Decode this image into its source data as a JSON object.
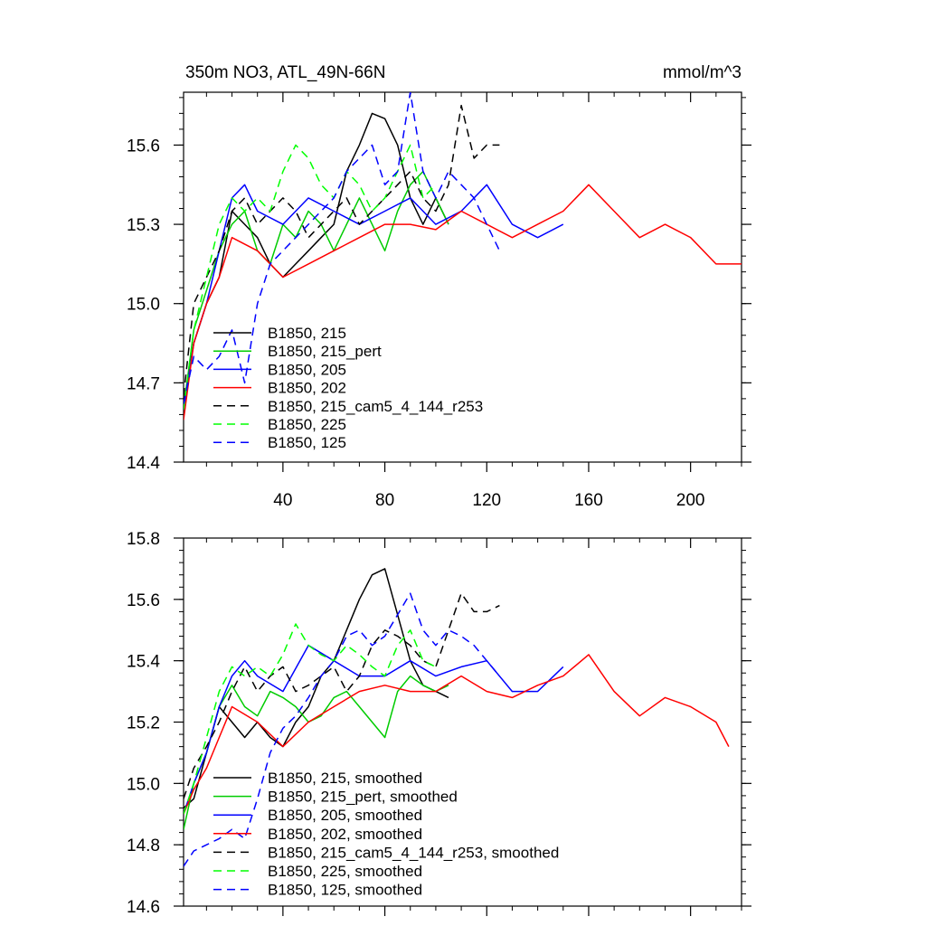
{
  "chart_data": [
    {
      "type": "line",
      "title": "350m NO3, ATL_49N-66N",
      "units": "mmol/m^3",
      "xlabel": "",
      "ylabel": "",
      "xlim": [
        1,
        220
      ],
      "ylim": [
        14.4,
        15.8
      ],
      "x_ticks": [
        40,
        80,
        120,
        160,
        200
      ],
      "x_tick_labels": [
        "40",
        "80",
        "120",
        "160",
        "200"
      ],
      "y_ticks": [
        14.4,
        14.7,
        15.0,
        15.3,
        15.6
      ],
      "y_tick_labels": [
        "14.4",
        "14.7",
        "15.0",
        "15.3",
        "15.6"
      ],
      "legend_position": "bottom-left",
      "series": [
        {
          "name": "B1850, 215",
          "color": "#000000",
          "dash": "solid",
          "x": [
            1,
            5,
            10,
            15,
            20,
            25,
            30,
            35,
            40,
            45,
            50,
            55,
            60,
            65,
            70,
            75,
            80,
            85,
            90,
            95,
            100,
            105
          ],
          "values": [
            14.62,
            14.85,
            15.0,
            15.1,
            15.35,
            15.3,
            15.25,
            15.15,
            15.1,
            15.15,
            15.2,
            15.25,
            15.3,
            15.5,
            15.6,
            15.72,
            15.7,
            15.6,
            15.4,
            15.3,
            15.4,
            15.3
          ]
        },
        {
          "name": "B1850, 215_pert",
          "color": "#00cc00",
          "dash": "solid",
          "x": [
            1,
            5,
            10,
            15,
            20,
            25,
            30,
            35,
            40,
            45,
            50,
            55,
            60,
            65,
            70,
            75,
            80,
            85,
            90,
            95,
            100,
            105
          ],
          "values": [
            14.6,
            14.9,
            15.05,
            15.2,
            15.3,
            15.35,
            15.2,
            15.15,
            15.3,
            15.25,
            15.35,
            15.3,
            15.2,
            15.3,
            15.4,
            15.3,
            15.2,
            15.35,
            15.45,
            15.5,
            15.4,
            15.3
          ]
        },
        {
          "name": "B1850, 205",
          "color": "#0000ff",
          "dash": "solid",
          "x": [
            1,
            5,
            10,
            15,
            20,
            25,
            30,
            40,
            50,
            60,
            70,
            80,
            90,
            100,
            110,
            120,
            130,
            140,
            150
          ],
          "values": [
            14.6,
            14.85,
            15.0,
            15.2,
            15.4,
            15.45,
            15.35,
            15.3,
            15.4,
            15.35,
            15.3,
            15.35,
            15.4,
            15.3,
            15.35,
            15.45,
            15.3,
            15.25,
            15.3
          ]
        },
        {
          "name": "B1850, 202",
          "color": "#ff0000",
          "dash": "solid",
          "x": [
            1,
            5,
            10,
            15,
            20,
            30,
            40,
            50,
            60,
            70,
            80,
            90,
            100,
            110,
            120,
            130,
            140,
            150,
            160,
            170,
            180,
            190,
            200,
            210,
            220
          ],
          "values": [
            14.56,
            14.85,
            15.0,
            15.1,
            15.25,
            15.2,
            15.1,
            15.15,
            15.2,
            15.25,
            15.3,
            15.3,
            15.28,
            15.35,
            15.3,
            15.25,
            15.3,
            15.35,
            15.45,
            15.35,
            15.25,
            15.3,
            15.25,
            15.15,
            15.15
          ]
        },
        {
          "name": "B1850, 215_cam5_4_144_r253",
          "color": "#000000",
          "dash": "dashed",
          "x": [
            1,
            5,
            10,
            15,
            20,
            25,
            30,
            35,
            40,
            45,
            50,
            55,
            60,
            65,
            70,
            75,
            80,
            85,
            90,
            95,
            100,
            105,
            110,
            115,
            120,
            125
          ],
          "values": [
            14.65,
            15.0,
            15.1,
            15.2,
            15.35,
            15.4,
            15.3,
            15.35,
            15.4,
            15.35,
            15.25,
            15.3,
            15.35,
            15.4,
            15.3,
            15.35,
            15.4,
            15.45,
            15.5,
            15.4,
            15.35,
            15.45,
            15.75,
            15.55,
            15.6,
            15.6
          ]
        },
        {
          "name": "B1850, 225",
          "color": "#00ff00",
          "dash": "dashed",
          "x": [
            1,
            5,
            10,
            15,
            20,
            25,
            30,
            35,
            40,
            45,
            50,
            55,
            60,
            65,
            70,
            75,
            80,
            85,
            90,
            95,
            100
          ],
          "values": [
            14.6,
            14.9,
            15.1,
            15.3,
            15.4,
            15.35,
            15.4,
            15.35,
            15.5,
            15.6,
            15.55,
            15.45,
            15.4,
            15.5,
            15.45,
            15.35,
            15.4,
            15.5,
            15.6,
            15.4,
            15.45
          ]
        },
        {
          "name": "B1850, 125",
          "color": "#0000ff",
          "dash": "dashed",
          "x": [
            1,
            5,
            10,
            15,
            20,
            25,
            30,
            35,
            40,
            45,
            50,
            55,
            60,
            65,
            70,
            75,
            80,
            85,
            90,
            95,
            100,
            105,
            110,
            115,
            120,
            125
          ],
          "values": [
            14.62,
            14.8,
            14.75,
            14.8,
            14.9,
            14.7,
            15.0,
            15.15,
            15.2,
            15.25,
            15.3,
            15.35,
            15.4,
            15.5,
            15.55,
            15.6,
            15.45,
            15.5,
            15.8,
            15.5,
            15.4,
            15.5,
            15.45,
            15.4,
            15.3,
            15.2
          ]
        }
      ]
    },
    {
      "type": "line",
      "title": "",
      "xlabel": "",
      "ylabel": "",
      "xlim": [
        1,
        220
      ],
      "ylim": [
        14.6,
        15.8
      ],
      "x_ticks": [
        40,
        80,
        120,
        160,
        200
      ],
      "y_ticks": [
        14.6,
        14.8,
        15.0,
        15.2,
        15.4,
        15.6,
        15.8
      ],
      "y_tick_labels": [
        "14.6",
        "14.8",
        "15.0",
        "15.2",
        "15.4",
        "15.6",
        "15.8"
      ],
      "legend_position": "bottom-left",
      "series": [
        {
          "name": "B1850, 215, smoothed",
          "color": "#000000",
          "dash": "solid",
          "x": [
            1,
            5,
            10,
            15,
            20,
            25,
            30,
            35,
            40,
            45,
            50,
            55,
            60,
            65,
            70,
            75,
            80,
            85,
            90,
            95,
            100,
            105
          ],
          "values": [
            14.92,
            14.95,
            15.1,
            15.25,
            15.2,
            15.15,
            15.2,
            15.15,
            15.12,
            15.2,
            15.25,
            15.35,
            15.4,
            15.5,
            15.6,
            15.68,
            15.7,
            15.55,
            15.4,
            15.32,
            15.3,
            15.28
          ]
        },
        {
          "name": "B1850, 215_pert, smoothed",
          "color": "#00cc00",
          "dash": "solid",
          "x": [
            1,
            5,
            10,
            15,
            20,
            25,
            30,
            35,
            40,
            45,
            50,
            55,
            60,
            65,
            70,
            75,
            80,
            85,
            90,
            95,
            100,
            105
          ],
          "values": [
            14.85,
            15.0,
            15.1,
            15.25,
            15.32,
            15.25,
            15.22,
            15.3,
            15.28,
            15.25,
            15.2,
            15.22,
            15.28,
            15.3,
            15.25,
            15.2,
            15.15,
            15.3,
            15.35,
            15.32,
            15.3,
            15.32
          ]
        },
        {
          "name": "B1850, 205, smoothed",
          "color": "#0000ff",
          "dash": "solid",
          "x": [
            1,
            5,
            10,
            15,
            20,
            25,
            30,
            40,
            50,
            60,
            70,
            80,
            90,
            100,
            110,
            120,
            130,
            140,
            150
          ],
          "values": [
            14.9,
            15.0,
            15.1,
            15.25,
            15.35,
            15.4,
            15.35,
            15.3,
            15.45,
            15.4,
            15.35,
            15.35,
            15.4,
            15.35,
            15.38,
            15.4,
            15.3,
            15.3,
            15.38
          ]
        },
        {
          "name": "B1850, 202, smoothed",
          "color": "#ff0000",
          "dash": "solid",
          "x": [
            1,
            5,
            10,
            15,
            20,
            30,
            40,
            50,
            60,
            70,
            80,
            90,
            100,
            110,
            120,
            130,
            140,
            150,
            160,
            170,
            180,
            190,
            200,
            210,
            215
          ],
          "values": [
            14.9,
            14.98,
            15.05,
            15.15,
            15.25,
            15.2,
            15.12,
            15.2,
            15.25,
            15.3,
            15.32,
            15.3,
            15.3,
            15.35,
            15.3,
            15.28,
            15.32,
            15.35,
            15.42,
            15.3,
            15.22,
            15.28,
            15.25,
            15.2,
            15.12
          ]
        },
        {
          "name": "B1850, 215_cam5_4_144_r253, smoothed",
          "color": "#000000",
          "dash": "dashed",
          "x": [
            1,
            5,
            10,
            15,
            20,
            25,
            30,
            35,
            40,
            45,
            50,
            55,
            60,
            65,
            70,
            75,
            80,
            85,
            90,
            95,
            100,
            105,
            110,
            115,
            120,
            125
          ],
          "values": [
            14.95,
            15.05,
            15.12,
            15.2,
            15.3,
            15.38,
            15.3,
            15.35,
            15.38,
            15.3,
            15.32,
            15.35,
            15.38,
            15.3,
            15.35,
            15.45,
            15.5,
            15.48,
            15.45,
            15.4,
            15.38,
            15.5,
            15.62,
            15.56,
            15.56,
            15.58
          ]
        },
        {
          "name": "B1850, 225, smoothed",
          "color": "#00ff00",
          "dash": "dashed",
          "x": [
            1,
            5,
            10,
            15,
            20,
            25,
            30,
            35,
            40,
            45,
            50,
            55,
            60,
            65,
            70,
            75,
            80,
            85,
            90,
            95,
            100
          ],
          "values": [
            14.9,
            15.0,
            15.15,
            15.3,
            15.38,
            15.35,
            15.38,
            15.35,
            15.42,
            15.52,
            15.45,
            15.42,
            15.4,
            15.45,
            15.42,
            15.38,
            15.35,
            15.45,
            15.5,
            15.4,
            15.38
          ]
        },
        {
          "name": "B1850, 125, smoothed",
          "color": "#0000ff",
          "dash": "dashed",
          "x": [
            1,
            5,
            10,
            15,
            20,
            25,
            30,
            35,
            40,
            45,
            50,
            55,
            60,
            65,
            70,
            75,
            80,
            85,
            90,
            95,
            100,
            105,
            110,
            115,
            120,
            125
          ],
          "values": [
            14.73,
            14.78,
            14.8,
            14.82,
            14.85,
            14.82,
            14.95,
            15.1,
            15.18,
            15.22,
            15.28,
            15.35,
            15.4,
            15.48,
            15.5,
            15.45,
            15.48,
            15.55,
            15.62,
            15.5,
            15.45,
            15.5,
            15.48,
            15.45,
            15.4,
            15.35
          ]
        }
      ]
    }
  ]
}
